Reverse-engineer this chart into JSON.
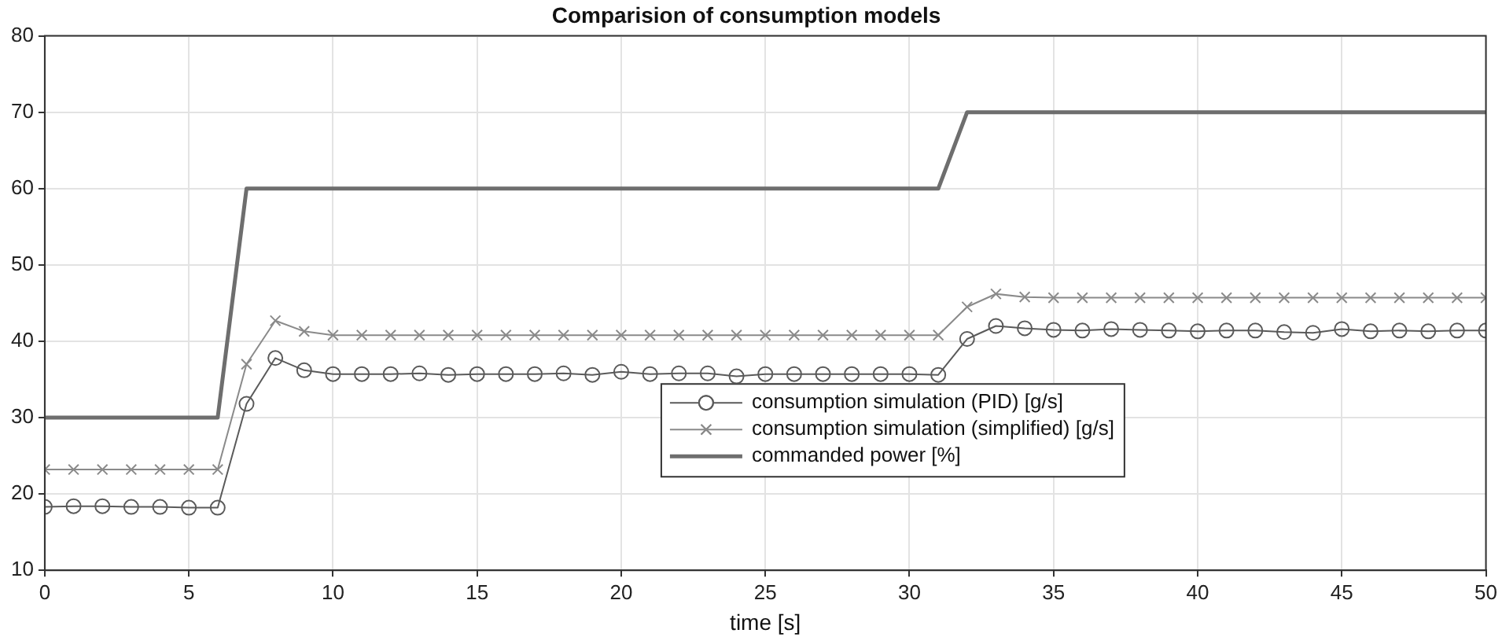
{
  "chart_data": {
    "type": "line",
    "title": "Comparision of consumption models",
    "xlabel": "time [s]",
    "xlim": [
      0,
      50
    ],
    "xticks": [
      0,
      5,
      10,
      15,
      20,
      25,
      30,
      35,
      40,
      45,
      50
    ],
    "ylim": [
      10,
      80
    ],
    "yticks": [
      10,
      20,
      30,
      40,
      50,
      60,
      70,
      80
    ],
    "grid": true,
    "legend": "bottom",
    "series": [
      {
        "name": "consumption simulation (PID) [g/s]",
        "color": "#5a5a5a",
        "marker": "circle",
        "x": [
          0,
          1,
          2,
          3,
          4,
          5,
          6,
          7,
          8,
          9,
          10,
          11,
          12,
          13,
          14,
          15,
          16,
          17,
          18,
          19,
          20,
          21,
          22,
          23,
          24,
          25,
          26,
          27,
          28,
          29,
          30,
          31,
          32,
          33,
          34,
          35,
          36,
          37,
          38,
          39,
          40,
          41,
          42,
          43,
          44,
          45,
          46,
          47,
          48,
          49,
          50
        ],
        "values": [
          18.3,
          18.4,
          18.4,
          18.3,
          18.3,
          18.2,
          18.2,
          31.8,
          37.8,
          36.2,
          35.7,
          35.7,
          35.7,
          35.8,
          35.6,
          35.7,
          35.7,
          35.7,
          35.8,
          35.6,
          36.0,
          35.7,
          35.8,
          35.8,
          35.4,
          35.7,
          35.7,
          35.7,
          35.7,
          35.7,
          35.7,
          35.6,
          40.3,
          42.0,
          41.7,
          41.5,
          41.4,
          41.6,
          41.5,
          41.4,
          41.3,
          41.4,
          41.4,
          41.2,
          41.1,
          41.6,
          41.3,
          41.4,
          41.3,
          41.4,
          41.4
        ]
      },
      {
        "name": "consumption simulation (simplified) [g/s]",
        "color": "#8a8a8a",
        "marker": "cross",
        "x": [
          0,
          1,
          2,
          3,
          4,
          5,
          6,
          7,
          8,
          9,
          10,
          11,
          12,
          13,
          14,
          15,
          16,
          17,
          18,
          19,
          20,
          21,
          22,
          23,
          24,
          25,
          26,
          27,
          28,
          29,
          30,
          31,
          32,
          33,
          34,
          35,
          36,
          37,
          38,
          39,
          40,
          41,
          42,
          43,
          44,
          45,
          46,
          47,
          48,
          49,
          50
        ],
        "values": [
          23.2,
          23.2,
          23.2,
          23.2,
          23.2,
          23.2,
          23.2,
          37.0,
          42.7,
          41.3,
          40.8,
          40.8,
          40.8,
          40.8,
          40.8,
          40.8,
          40.8,
          40.8,
          40.8,
          40.8,
          40.8,
          40.8,
          40.8,
          40.8,
          40.8,
          40.8,
          40.8,
          40.8,
          40.8,
          40.8,
          40.8,
          40.8,
          44.5,
          46.2,
          45.8,
          45.7,
          45.7,
          45.7,
          45.7,
          45.7,
          45.7,
          45.7,
          45.7,
          45.7,
          45.7,
          45.7,
          45.7,
          45.7,
          45.7,
          45.7,
          45.7
        ]
      },
      {
        "name": "commanded power [%]",
        "color": "#6e6e6e",
        "marker": "none",
        "x": [
          0,
          6,
          7,
          31,
          32,
          50
        ],
        "values": [
          30,
          30,
          60,
          60,
          70,
          70
        ]
      }
    ]
  }
}
